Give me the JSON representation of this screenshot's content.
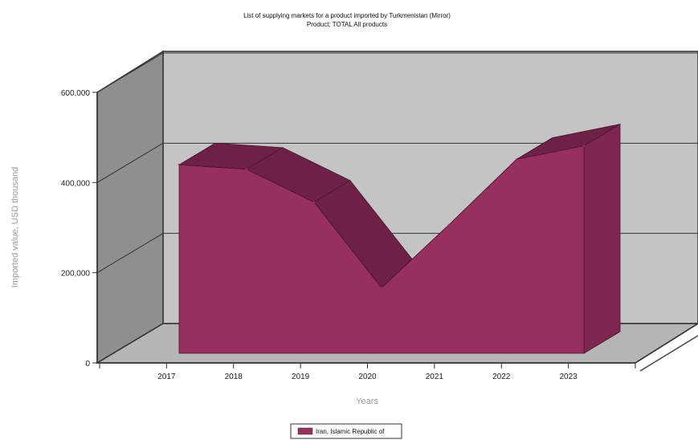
{
  "chart_data": {
    "type": "area",
    "title": "List of supplying markets for a product imported by Turkmenistan (Mirror)",
    "subtitle": "Product: TOTAL All products",
    "xlabel": "Years",
    "ylabel": "Imported value, USD thousand",
    "categories": [
      "2017",
      "2018",
      "2019",
      "2020",
      "2021",
      "2022",
      "2023"
    ],
    "series": [
      {
        "name": "Iran, Islamic Republic of",
        "values": [
          418000,
          408000,
          335000,
          145000,
          285000,
          430000,
          460000
        ]
      }
    ],
    "y_ticks": [
      "0",
      "200,000",
      "400,000",
      "600,000"
    ],
    "ylim": [
      0,
      600000
    ],
    "grid": true,
    "legend_position": "bottom-center",
    "colors": {
      "series": "#97305f",
      "series_top": "#6e2147",
      "series_side": "#7c2650",
      "back_wall": "#c4c4c4",
      "side_wall": "#8f8f8f",
      "floor": "#b5b5b5"
    }
  }
}
